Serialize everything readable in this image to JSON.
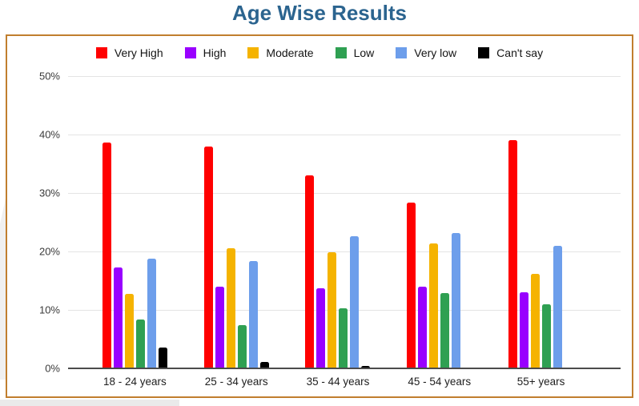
{
  "page": {
    "title": "Age Wise Results"
  },
  "colors": {
    "title": "#2B648F",
    "box_border": "#C17E2E",
    "gridline": "#e4e4e4",
    "axis_line": "#4c4c4c"
  },
  "chart_data": {
    "type": "bar",
    "title": "Age Wise Results",
    "xlabel": "",
    "ylabel": "",
    "ylim": [
      0,
      50
    ],
    "yticks": [
      "0%",
      "10%",
      "20%",
      "30%",
      "40%",
      "50%"
    ],
    "grid": true,
    "legend_position": "top",
    "categories": [
      "18 - 24 years",
      "25 - 34 years",
      "35 - 44 years",
      "45 - 54 years",
      "55+ years"
    ],
    "series": [
      {
        "name": "Very High",
        "color": "#FF0000",
        "values": [
          38.7,
          38.0,
          33.0,
          28.4,
          39.0
        ]
      },
      {
        "name": "High",
        "color": "#9900FF",
        "values": [
          17.3,
          14.0,
          13.7,
          14.0,
          13.0
        ]
      },
      {
        "name": "Moderate",
        "color": "#F5B300",
        "values": [
          12.8,
          20.5,
          19.9,
          21.4,
          16.2
        ]
      },
      {
        "name": "Low",
        "color": "#2FA052",
        "values": [
          8.4,
          7.4,
          10.3,
          12.9,
          11.0
        ]
      },
      {
        "name": "Very low",
        "color": "#6D9EEB",
        "values": [
          18.8,
          18.4,
          22.6,
          23.2,
          21.0
        ]
      },
      {
        "name": "Can't say",
        "color": "#000000",
        "values": [
          3.6,
          1.1,
          0.4,
          0,
          0
        ]
      }
    ]
  }
}
